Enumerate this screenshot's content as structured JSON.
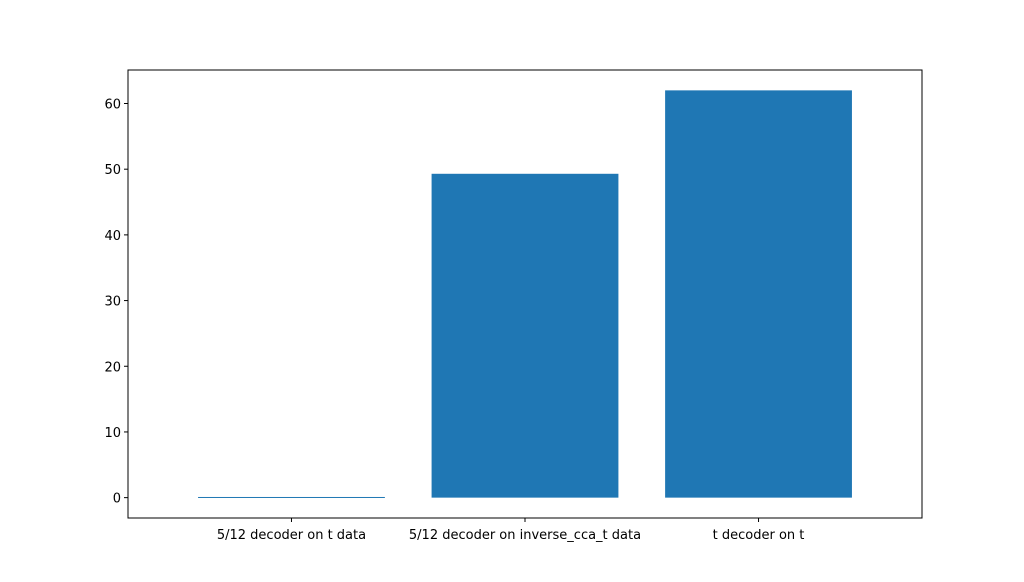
{
  "chart_data": {
    "type": "bar",
    "categories": [
      "5/12 decoder on t data",
      "5/12 decoder on inverse_cca_t data",
      "t decoder on t"
    ],
    "values": [
      0.1,
      49.3,
      62.0
    ],
    "title": "",
    "xlabel": "",
    "ylabel": "",
    "ylim": [
      -3.1,
      65.1
    ],
    "yticks": [
      "0",
      "10",
      "20",
      "30",
      "40",
      "50",
      "60"
    ],
    "grid": false,
    "bar_color": "#1f77b4"
  }
}
